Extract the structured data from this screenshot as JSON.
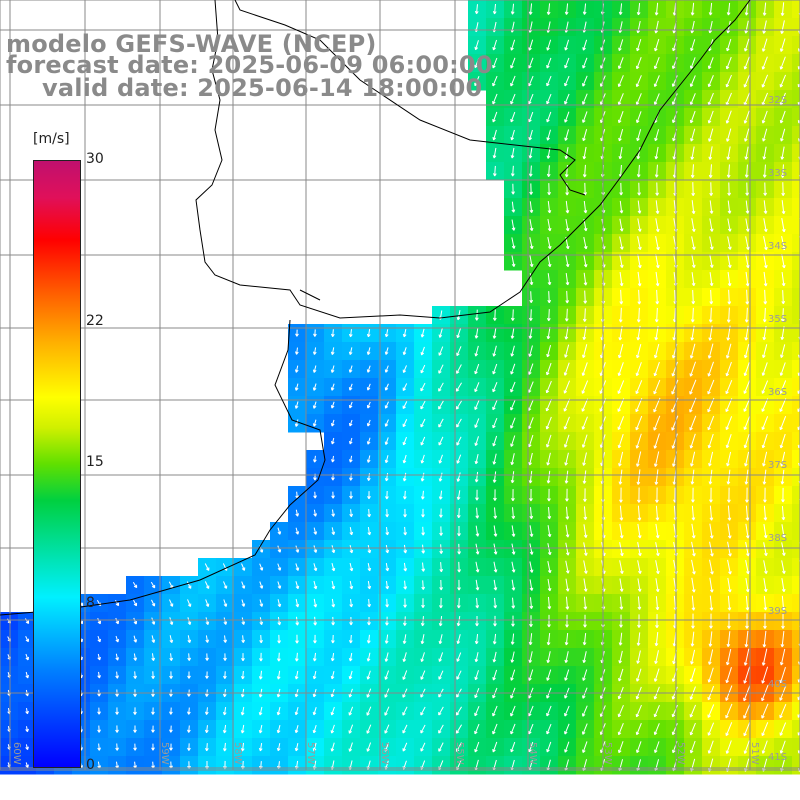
{
  "title": {
    "line1": "modelo GEFS-WAVE (NCEP)",
    "line2": "forecast date: 2025-06-09 06:00:00",
    "line3": "valid date: 2025-06-14 18:00:00"
  },
  "colorbar": {
    "unit": "[m/s]",
    "min": 0,
    "max": 30,
    "ticks": [
      {
        "value": 30,
        "label": "30"
      },
      {
        "value": 22,
        "label": "22"
      },
      {
        "value": 15,
        "label": "15"
      },
      {
        "value": 8,
        "label": "8"
      },
      {
        "value": 0,
        "label": "0"
      }
    ]
  },
  "map": {
    "lat_labels": [
      "32S",
      "33S",
      "34S",
      "35S",
      "36S",
      "37S",
      "38S",
      "39S",
      "40S",
      "41S"
    ],
    "lon_labels": [
      "60W",
      "59W",
      "58W",
      "57W",
      "56W",
      "55W",
      "54W",
      "53W",
      "52W",
      "51W"
    ],
    "colors": {
      "gridline": "#888888",
      "coastline": "#000000",
      "arrow": "#ffffff"
    }
  }
}
